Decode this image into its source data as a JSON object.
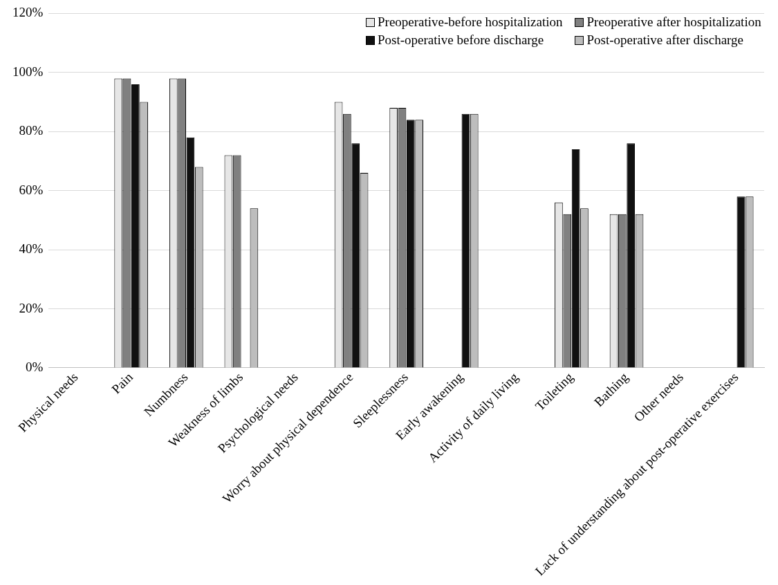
{
  "chart_data": {
    "type": "bar",
    "categories": [
      "Physical needs",
      "Pain",
      "Numbness",
      "Weakness of limbs",
      "Psychological needs",
      "Worry about physical dependence",
      "Sleeplessness",
      "Early awakening",
      "Activity of daily living",
      "Toileting",
      "Bathing",
      "Other needs",
      "Lack of understanding about post-operative exercises"
    ],
    "series": [
      {
        "name": "Preoperative-before hospitalization",
        "color": "#e6e6e6",
        "values": [
          null,
          98,
          98,
          72,
          null,
          90,
          88,
          null,
          null,
          56,
          52,
          null,
          null
        ]
      },
      {
        "name": "Preoperative after hospitalization",
        "color": "#808080",
        "values": [
          null,
          98,
          98,
          72,
          null,
          86,
          88,
          null,
          null,
          52,
          52,
          null,
          null
        ]
      },
      {
        "name": "Post-operative before discharge",
        "color": "#111111",
        "values": [
          null,
          96,
          78,
          null,
          null,
          76,
          84,
          86,
          null,
          74,
          76,
          null,
          58
        ]
      },
      {
        "name": "Post-operative after discharge",
        "color": "#bdbdbd",
        "values": [
          null,
          90,
          68,
          54,
          null,
          66,
          84,
          86,
          null,
          54,
          52,
          null,
          58
        ]
      }
    ],
    "ylim": [
      0,
      120
    ],
    "yticks": [
      {
        "value": 0,
        "label": "0%"
      },
      {
        "value": 20,
        "label": "20%"
      },
      {
        "value": 40,
        "label": "40%"
      },
      {
        "value": 60,
        "label": "60%"
      },
      {
        "value": 80,
        "label": "80%"
      },
      {
        "value": 100,
        "label": "100%"
      },
      {
        "value": 120,
        "label": "120%"
      }
    ],
    "grid": "y",
    "legend": "top right"
  }
}
